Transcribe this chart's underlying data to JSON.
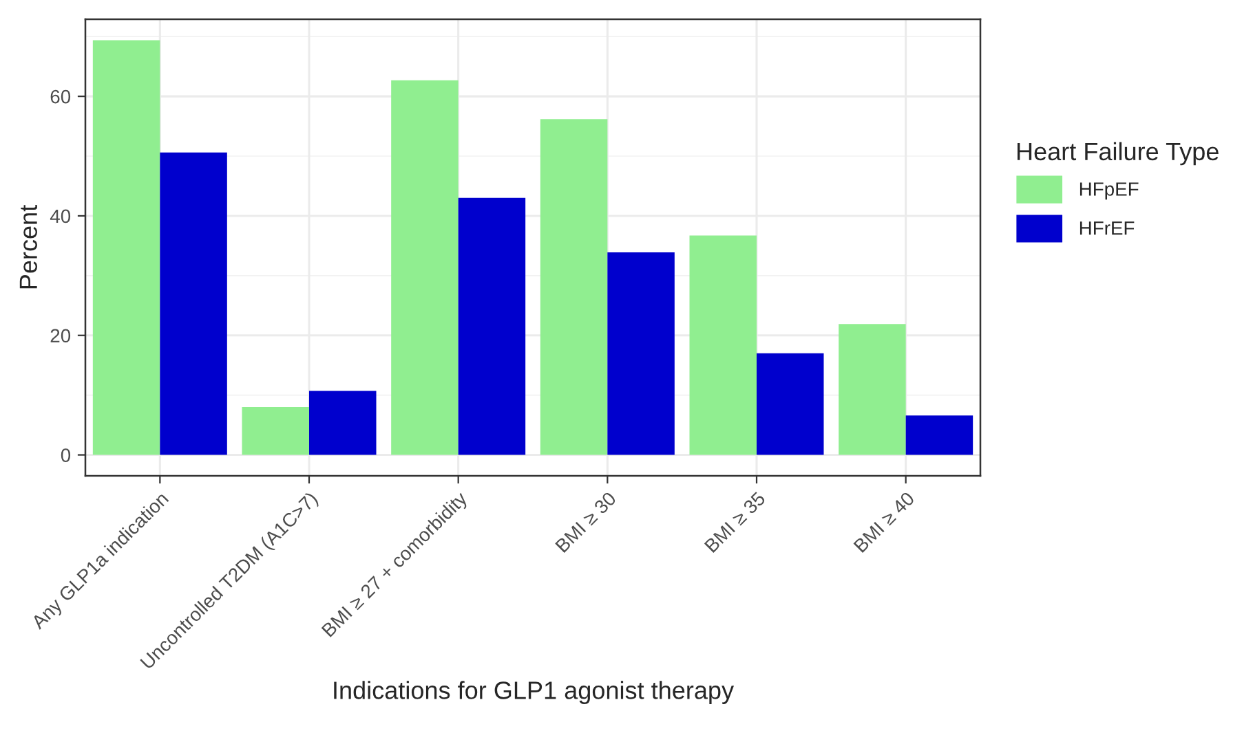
{
  "chart_data": {
    "type": "bar",
    "xlabel": "Indications for GLP1 agonist therapy",
    "ylabel": "Percent",
    "legend_title": "Heart Failure Type",
    "categories": [
      "Any GLP1a indication",
      "Uncontrolled T2DM (A1C>7)",
      "BMI ≥ 27 + comorbidity",
      "BMI ≥ 30",
      "BMI ≥ 35",
      "BMI ≥ 40"
    ],
    "series": [
      {
        "name": "HFpEF",
        "color": "#90ee90",
        "values": [
          69.4,
          8.0,
          62.7,
          56.2,
          36.7,
          21.9
        ]
      },
      {
        "name": "HFrEF",
        "color": "#0000cd",
        "values": [
          50.6,
          10.7,
          43.0,
          33.9,
          17.0,
          6.6
        ]
      }
    ],
    "ylim": [
      -3.5,
      72.9
    ],
    "yticks": [
      0,
      20,
      40,
      60
    ],
    "grid": true,
    "legend": "right"
  }
}
